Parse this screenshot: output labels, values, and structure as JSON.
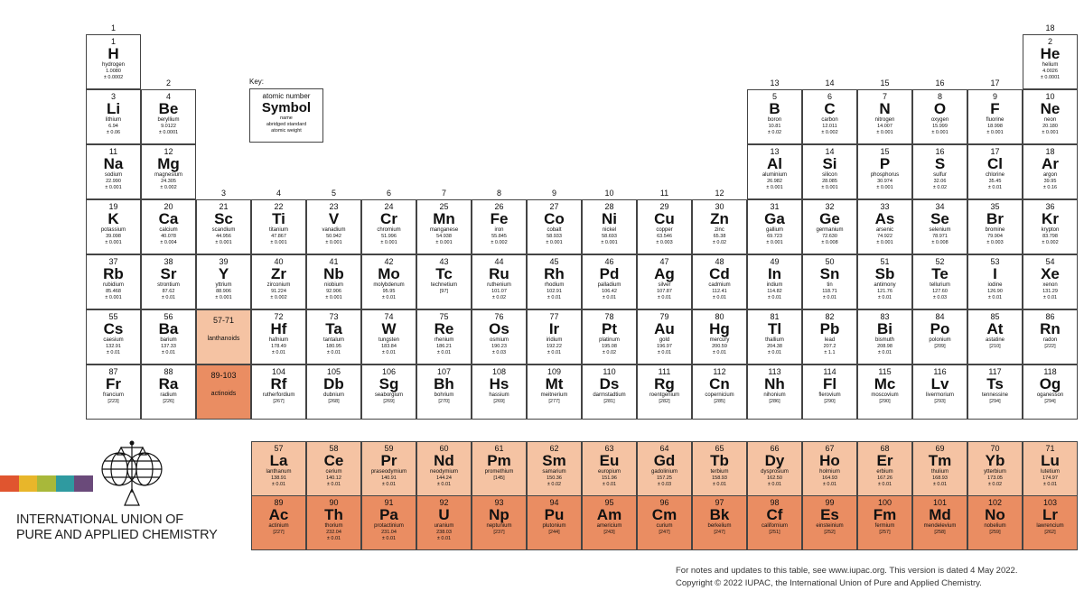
{
  "key": {
    "label": "Key:",
    "atomic_number": "atomic number",
    "symbol": "Symbol",
    "name": "name",
    "weight_line1": "abridged standard",
    "weight_line2": "atomic weight"
  },
  "groups": [
    "1",
    "2",
    "3",
    "4",
    "5",
    "6",
    "7",
    "8",
    "9",
    "10",
    "11",
    "12",
    "13",
    "14",
    "15",
    "16",
    "17",
    "18"
  ],
  "placeholders": [
    {
      "range": "57-71",
      "label": "lanthanoids",
      "color": "#f5c3a3"
    },
    {
      "range": "89-103",
      "label": "actinoids",
      "color": "#ea8d62"
    }
  ],
  "colors": {
    "lanthanoid": "#f5c3a3",
    "actinoid": "#ea8d62",
    "border": "#444444",
    "logo_bar": [
      "#e0552f",
      "#e8b62a",
      "#a8b83a",
      "#2f9aa0",
      "#6a4a7a"
    ]
  },
  "elements": [
    [
      1,
      "H",
      "hydrogen",
      "1.0080",
      "± 0.0002",
      1,
      1
    ],
    [
      2,
      "He",
      "helium",
      "4.0026",
      "± 0.0001",
      18,
      1
    ],
    [
      3,
      "Li",
      "lithium",
      "6.94",
      "± 0.06",
      1,
      2
    ],
    [
      4,
      "Be",
      "beryllium",
      "9.0122",
      "± 0.0001",
      2,
      2
    ],
    [
      5,
      "B",
      "boron",
      "10.81",
      "± 0.02",
      13,
      2
    ],
    [
      6,
      "C",
      "carbon",
      "12.011",
      "± 0.002",
      14,
      2
    ],
    [
      7,
      "N",
      "nitrogen",
      "14.007",
      "± 0.001",
      15,
      2
    ],
    [
      8,
      "O",
      "oxygen",
      "15.999",
      "± 0.001",
      16,
      2
    ],
    [
      9,
      "F",
      "fluorine",
      "18.998",
      "± 0.001",
      17,
      2
    ],
    [
      10,
      "Ne",
      "neon",
      "20.180",
      "± 0.001",
      18,
      2
    ],
    [
      11,
      "Na",
      "sodium",
      "22.990",
      "± 0.001",
      1,
      3
    ],
    [
      12,
      "Mg",
      "magnesium",
      "24.305",
      "± 0.002",
      2,
      3
    ],
    [
      13,
      "Al",
      "aluminium",
      "26.982",
      "± 0.001",
      13,
      3
    ],
    [
      14,
      "Si",
      "silicon",
      "28.085",
      "± 0.001",
      14,
      3
    ],
    [
      15,
      "P",
      "phosphorus",
      "30.974",
      "± 0.001",
      15,
      3
    ],
    [
      16,
      "S",
      "sulfur",
      "32.06",
      "± 0.02",
      16,
      3
    ],
    [
      17,
      "Cl",
      "chlorine",
      "35.45",
      "± 0.01",
      17,
      3
    ],
    [
      18,
      "Ar",
      "argon",
      "39.95",
      "± 0.16",
      18,
      3
    ],
    [
      19,
      "K",
      "potassium",
      "39.098",
      "± 0.001",
      1,
      4
    ],
    [
      20,
      "Ca",
      "calcium",
      "40.078",
      "± 0.004",
      2,
      4
    ],
    [
      21,
      "Sc",
      "scandium",
      "44.956",
      "± 0.001",
      3,
      4
    ],
    [
      22,
      "Ti",
      "titanium",
      "47.867",
      "± 0.001",
      4,
      4
    ],
    [
      23,
      "V",
      "vanadium",
      "50.942",
      "± 0.001",
      5,
      4
    ],
    [
      24,
      "Cr",
      "chromium",
      "51.996",
      "± 0.001",
      6,
      4
    ],
    [
      25,
      "Mn",
      "manganese",
      "54.938",
      "± 0.001",
      7,
      4
    ],
    [
      26,
      "Fe",
      "iron",
      "55.845",
      "± 0.002",
      8,
      4
    ],
    [
      27,
      "Co",
      "cobalt",
      "58.933",
      "± 0.001",
      9,
      4
    ],
    [
      28,
      "Ni",
      "nickel",
      "58.693",
      "± 0.001",
      10,
      4
    ],
    [
      29,
      "Cu",
      "copper",
      "63.546",
      "± 0.003",
      11,
      4
    ],
    [
      30,
      "Zn",
      "zinc",
      "65.38",
      "± 0.02",
      12,
      4
    ],
    [
      31,
      "Ga",
      "gallium",
      "69.723",
      "± 0.001",
      13,
      4
    ],
    [
      32,
      "Ge",
      "germanium",
      "72.630",
      "± 0.008",
      14,
      4
    ],
    [
      33,
      "As",
      "arsenic",
      "74.922",
      "± 0.001",
      15,
      4
    ],
    [
      34,
      "Se",
      "selenium",
      "78.971",
      "± 0.008",
      16,
      4
    ],
    [
      35,
      "Br",
      "bromine",
      "79.904",
      "± 0.003",
      17,
      4
    ],
    [
      36,
      "Kr",
      "krypton",
      "83.798",
      "± 0.002",
      18,
      4
    ],
    [
      37,
      "Rb",
      "rubidium",
      "85.468",
      "± 0.001",
      1,
      5
    ],
    [
      38,
      "Sr",
      "strontium",
      "87.62",
      "± 0.01",
      2,
      5
    ],
    [
      39,
      "Y",
      "yttrium",
      "88.906",
      "± 0.001",
      3,
      5
    ],
    [
      40,
      "Zr",
      "zirconium",
      "91.224",
      "± 0.002",
      4,
      5
    ],
    [
      41,
      "Nb",
      "niobium",
      "92.906",
      "± 0.001",
      5,
      5
    ],
    [
      42,
      "Mo",
      "molybdenum",
      "95.95",
      "± 0.01",
      6,
      5
    ],
    [
      43,
      "Tc",
      "technetium",
      "[97]",
      "",
      7,
      5
    ],
    [
      44,
      "Ru",
      "ruthenium",
      "101.07",
      "± 0.02",
      8,
      5
    ],
    [
      45,
      "Rh",
      "rhodium",
      "102.91",
      "± 0.01",
      9,
      5
    ],
    [
      46,
      "Pd",
      "palladium",
      "106.42",
      "± 0.01",
      10,
      5
    ],
    [
      47,
      "Ag",
      "silver",
      "107.87",
      "± 0.01",
      11,
      5
    ],
    [
      48,
      "Cd",
      "cadmium",
      "112.41",
      "± 0.01",
      12,
      5
    ],
    [
      49,
      "In",
      "indium",
      "114.82",
      "± 0.01",
      13,
      5
    ],
    [
      50,
      "Sn",
      "tin",
      "118.71",
      "± 0.01",
      14,
      5
    ],
    [
      51,
      "Sb",
      "antimony",
      "121.76",
      "± 0.01",
      15,
      5
    ],
    [
      52,
      "Te",
      "tellurium",
      "127.60",
      "± 0.03",
      16,
      5
    ],
    [
      53,
      "I",
      "iodine",
      "126.90",
      "± 0.01",
      17,
      5
    ],
    [
      54,
      "Xe",
      "xenon",
      "131.29",
      "± 0.01",
      18,
      5
    ],
    [
      55,
      "Cs",
      "caesium",
      "132.91",
      "± 0.01",
      1,
      6
    ],
    [
      56,
      "Ba",
      "barium",
      "137.33",
      "± 0.01",
      2,
      6
    ],
    [
      72,
      "Hf",
      "hafnium",
      "178.49",
      "± 0.01",
      4,
      6
    ],
    [
      73,
      "Ta",
      "tantalum",
      "180.95",
      "± 0.01",
      5,
      6
    ],
    [
      74,
      "W",
      "tungsten",
      "183.84",
      "± 0.01",
      6,
      6
    ],
    [
      75,
      "Re",
      "rhenium",
      "186.21",
      "± 0.01",
      7,
      6
    ],
    [
      76,
      "Os",
      "osmium",
      "190.23",
      "± 0.03",
      8,
      6
    ],
    [
      77,
      "Ir",
      "iridium",
      "192.22",
      "± 0.01",
      9,
      6
    ],
    [
      78,
      "Pt",
      "platinum",
      "195.08",
      "± 0.02",
      10,
      6
    ],
    [
      79,
      "Au",
      "gold",
      "196.97",
      "± 0.01",
      11,
      6
    ],
    [
      80,
      "Hg",
      "mercury",
      "200.59",
      "± 0.01",
      12,
      6
    ],
    [
      81,
      "Tl",
      "thallium",
      "204.38",
      "± 0.01",
      13,
      6
    ],
    [
      82,
      "Pb",
      "lead",
      "207.2",
      "± 1.1",
      14,
      6
    ],
    [
      83,
      "Bi",
      "bismuth",
      "208.98",
      "± 0.01",
      15,
      6
    ],
    [
      84,
      "Po",
      "polonium",
      "[209]",
      "",
      16,
      6
    ],
    [
      85,
      "At",
      "astatine",
      "[210]",
      "",
      17,
      6
    ],
    [
      86,
      "Rn",
      "radon",
      "[222]",
      "",
      18,
      6
    ],
    [
      87,
      "Fr",
      "francium",
      "[223]",
      "",
      1,
      7
    ],
    [
      88,
      "Ra",
      "radium",
      "[226]",
      "",
      2,
      7
    ],
    [
      104,
      "Rf",
      "rutherfordium",
      "[267]",
      "",
      4,
      7
    ],
    [
      105,
      "Db",
      "dubnium",
      "[268]",
      "",
      5,
      7
    ],
    [
      106,
      "Sg",
      "seaborgium",
      "[269]",
      "",
      6,
      7
    ],
    [
      107,
      "Bh",
      "bohrium",
      "[270]",
      "",
      7,
      7
    ],
    [
      108,
      "Hs",
      "hassium",
      "[269]",
      "",
      8,
      7
    ],
    [
      109,
      "Mt",
      "meitnerium",
      "[277]",
      "",
      9,
      7
    ],
    [
      110,
      "Ds",
      "darmstadtium",
      "[281]",
      "",
      10,
      7
    ],
    [
      111,
      "Rg",
      "roentgenium",
      "[282]",
      "",
      11,
      7
    ],
    [
      112,
      "Cn",
      "copernicium",
      "[285]",
      "",
      12,
      7
    ],
    [
      113,
      "Nh",
      "nihonium",
      "[286]",
      "",
      13,
      7
    ],
    [
      114,
      "Fl",
      "flerovium",
      "[290]",
      "",
      14,
      7
    ],
    [
      115,
      "Mc",
      "moscovium",
      "[290]",
      "",
      15,
      7
    ],
    [
      116,
      "Lv",
      "livermorium",
      "[293]",
      "",
      16,
      7
    ],
    [
      117,
      "Ts",
      "tennessine",
      "[294]",
      "",
      17,
      7
    ],
    [
      118,
      "Og",
      "oganesson",
      "[294]",
      "",
      18,
      7
    ]
  ],
  "lanthanoids": [
    [
      57,
      "La",
      "lanthanum",
      "138.91",
      "± 0.01"
    ],
    [
      58,
      "Ce",
      "cerium",
      "140.12",
      "± 0.01"
    ],
    [
      59,
      "Pr",
      "praseodymium",
      "140.91",
      "± 0.01"
    ],
    [
      60,
      "Nd",
      "neodymium",
      "144.24",
      "± 0.01"
    ],
    [
      61,
      "Pm",
      "promethium",
      "[145]",
      ""
    ],
    [
      62,
      "Sm",
      "samarium",
      "150.36",
      "± 0.02"
    ],
    [
      63,
      "Eu",
      "europium",
      "151.96",
      "± 0.01"
    ],
    [
      64,
      "Gd",
      "gadolinium",
      "157.25",
      "± 0.03"
    ],
    [
      65,
      "Tb",
      "terbium",
      "158.93",
      "± 0.01"
    ],
    [
      66,
      "Dy",
      "dysprosium",
      "162.50",
      "± 0.01"
    ],
    [
      67,
      "Ho",
      "holmium",
      "164.93",
      "± 0.01"
    ],
    [
      68,
      "Er",
      "erbium",
      "167.26",
      "± 0.01"
    ],
    [
      69,
      "Tm",
      "thulium",
      "168.93",
      "± 0.01"
    ],
    [
      70,
      "Yb",
      "ytterbium",
      "173.05",
      "± 0.02"
    ],
    [
      71,
      "Lu",
      "lutetium",
      "174.97",
      "± 0.01"
    ]
  ],
  "actinoids": [
    [
      89,
      "Ac",
      "actinium",
      "[227]",
      ""
    ],
    [
      90,
      "Th",
      "thorium",
      "232.04",
      "± 0.01"
    ],
    [
      91,
      "Pa",
      "protactinium",
      "231.04",
      "± 0.01"
    ],
    [
      92,
      "U",
      "uranium",
      "238.03",
      "± 0.01"
    ],
    [
      93,
      "Np",
      "neptunium",
      "[237]",
      ""
    ],
    [
      94,
      "Pu",
      "plutonium",
      "[244]",
      ""
    ],
    [
      95,
      "Am",
      "americium",
      "[243]",
      ""
    ],
    [
      96,
      "Cm",
      "curium",
      "[247]",
      ""
    ],
    [
      97,
      "Bk",
      "berkelium",
      "[247]",
      ""
    ],
    [
      98,
      "Cf",
      "californium",
      "[251]",
      ""
    ],
    [
      99,
      "Es",
      "einsteinium",
      "[252]",
      ""
    ],
    [
      100,
      "Fm",
      "fermium",
      "[257]",
      ""
    ],
    [
      101,
      "Md",
      "mendelevium",
      "[258]",
      ""
    ],
    [
      102,
      "No",
      "nobelium",
      "[259]",
      ""
    ],
    [
      103,
      "Lr",
      "lawrencium",
      "[262]",
      ""
    ]
  ],
  "org": {
    "line1": "INTERNATIONAL UNION OF",
    "line2": "PURE AND APPLIED CHEMISTRY",
    "logo_icon": "iupac-globes-logo"
  },
  "footer": {
    "line1": "For notes and updates to this table, see www.iupac.org. This version is dated 4 May 2022.",
    "line2": "Copyright © 2022 IUPAC, the International Union of Pure and Applied Chemistry."
  }
}
